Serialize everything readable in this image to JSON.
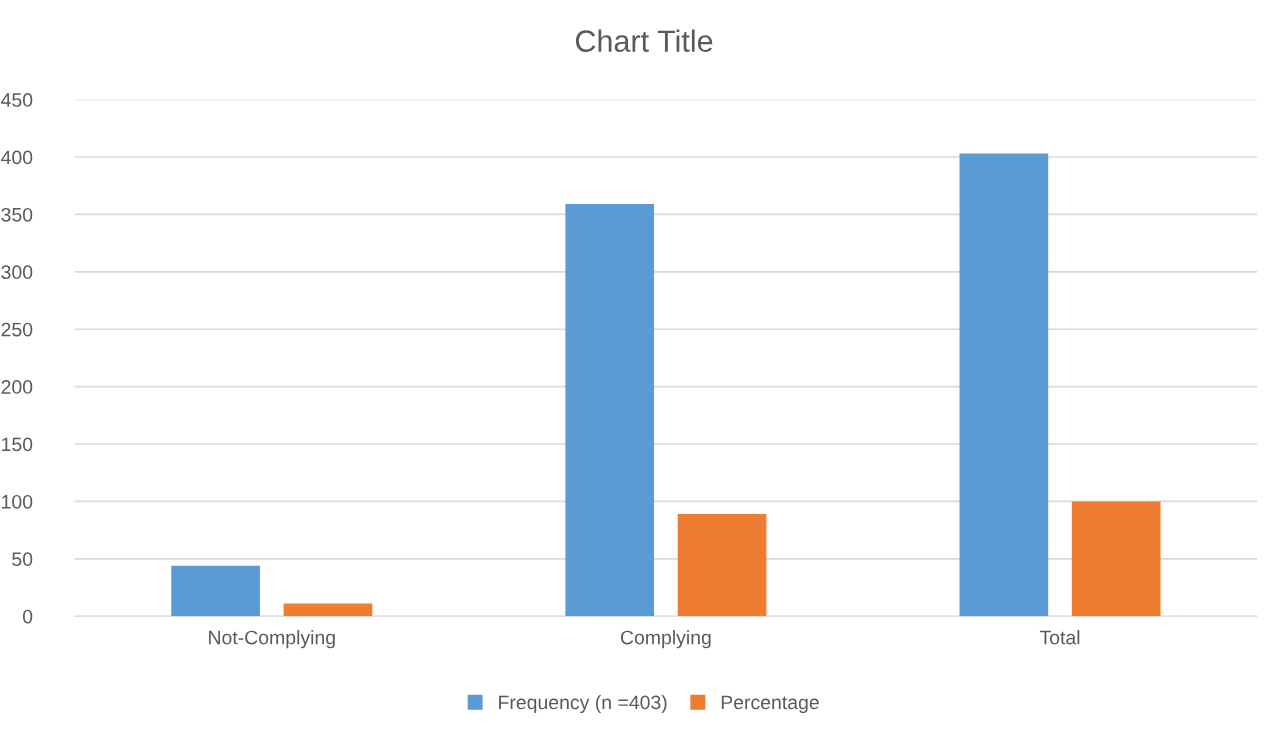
{
  "chart_data": {
    "type": "bar",
    "title": "Chart Title",
    "categories": [
      "Not-Complying",
      "Complying",
      "Total"
    ],
    "series": [
      {
        "name": "Frequency (n =403)",
        "color": "#5b9bd5",
        "values": [
          44,
          359,
          403
        ]
      },
      {
        "name": "Percentage",
        "color": "#ed7d31",
        "values": [
          11,
          89,
          100
        ]
      }
    ],
    "ylim": [
      0,
      450
    ],
    "yticks": [
      0,
      50,
      100,
      150,
      200,
      250,
      300,
      350,
      400,
      450
    ],
    "grid": "y",
    "legend": "bottom"
  }
}
